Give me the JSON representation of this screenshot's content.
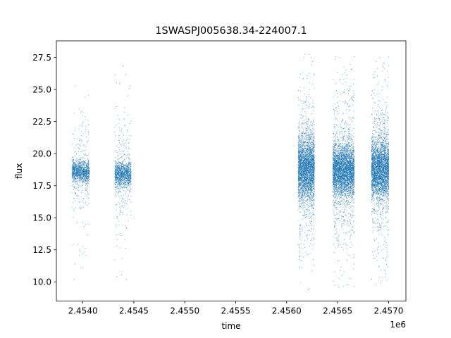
{
  "chart_data": {
    "type": "scatter",
    "title": "1SWASPJ005638.34-224007.1",
    "xlabel": "time",
    "ylabel": "flux",
    "x_offset_label": "1e6",
    "xlim": [
      2453740,
      2457170
    ],
    "ylim": [
      8.5,
      28.8
    ],
    "grid": false,
    "point_color": "#1f77b4",
    "x_ticks": [
      {
        "value": 2454000,
        "label": "2.4540"
      },
      {
        "value": 2454500,
        "label": "2.4545"
      },
      {
        "value": 2455000,
        "label": "2.4550"
      },
      {
        "value": 2455500,
        "label": "2.4555"
      },
      {
        "value": 2456000,
        "label": "2.4560"
      },
      {
        "value": 2456500,
        "label": "2.4565"
      },
      {
        "value": 2457000,
        "label": "2.4570"
      }
    ],
    "y_ticks": [
      {
        "value": 10.0,
        "label": "10.0"
      },
      {
        "value": 12.5,
        "label": "12.5"
      },
      {
        "value": 15.0,
        "label": "15.0"
      },
      {
        "value": 17.5,
        "label": "17.5"
      },
      {
        "value": 20.0,
        "label": "20.0"
      },
      {
        "value": 22.5,
        "label": "22.5"
      },
      {
        "value": 25.0,
        "label": "25.0"
      },
      {
        "value": 27.5,
        "label": "27.5"
      }
    ],
    "clusters": [
      {
        "x_start": 2453890,
        "x_end": 2454060,
        "center": 18.6,
        "core_sd": 0.4,
        "spread": 2.0,
        "ymin": 9.8,
        "ymax": 26.5,
        "density": 1.0
      },
      {
        "x_start": 2454310,
        "x_end": 2454470,
        "center": 18.4,
        "core_sd": 0.5,
        "spread": 2.2,
        "ymin": 9.4,
        "ymax": 27.0,
        "density": 1.0
      },
      {
        "x_start": 2456110,
        "x_end": 2456270,
        "center": 18.8,
        "core_sd": 1.2,
        "spread": 3.0,
        "ymin": 9.4,
        "ymax": 27.8,
        "density": 2.6
      },
      {
        "x_start": 2456450,
        "x_end": 2456660,
        "center": 18.7,
        "core_sd": 1.0,
        "spread": 3.0,
        "ymin": 9.5,
        "ymax": 27.6,
        "density": 3.0
      },
      {
        "x_start": 2456830,
        "x_end": 2457000,
        "center": 18.8,
        "core_sd": 1.1,
        "spread": 3.0,
        "ymin": 9.4,
        "ymax": 27.7,
        "density": 2.6
      }
    ]
  }
}
